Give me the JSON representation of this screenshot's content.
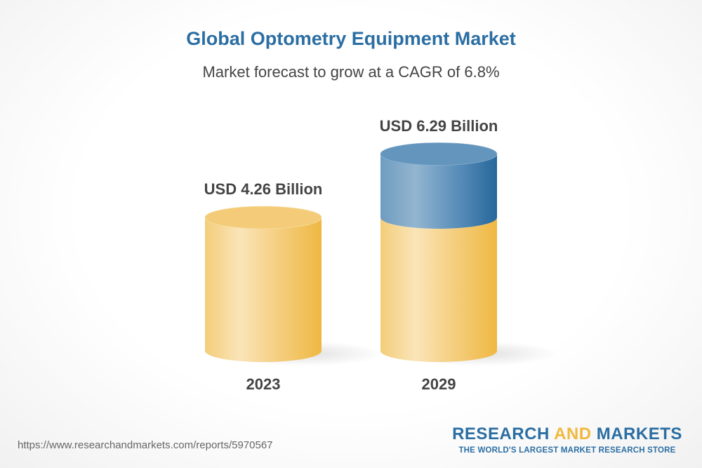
{
  "chart_data": {
    "type": "bar",
    "title": "Global Optometry Equipment Market",
    "subtitle": "Market forecast to grow at a CAGR of 6.8%",
    "categories": [
      "2023",
      "2029"
    ],
    "values": [
      4.26,
      6.29
    ],
    "value_labels": [
      "USD 4.26 Billion",
      "USD 6.29 Billion"
    ],
    "unit": "USD Billion",
    "style": "3d-cylinder",
    "colors": {
      "base": "#f0b93f",
      "growth": "#2b6ea3",
      "title": "#2b6ea3",
      "label": "#444444"
    },
    "grid": false,
    "legend": "none"
  },
  "footer": {
    "url": "https://www.researchandmarkets.com/reports/5970567",
    "logo_research": "RESEARCH",
    "logo_and": "AND",
    "logo_markets": "MARKETS",
    "logo_tagline": "THE WORLD'S LARGEST MARKET RESEARCH STORE"
  }
}
